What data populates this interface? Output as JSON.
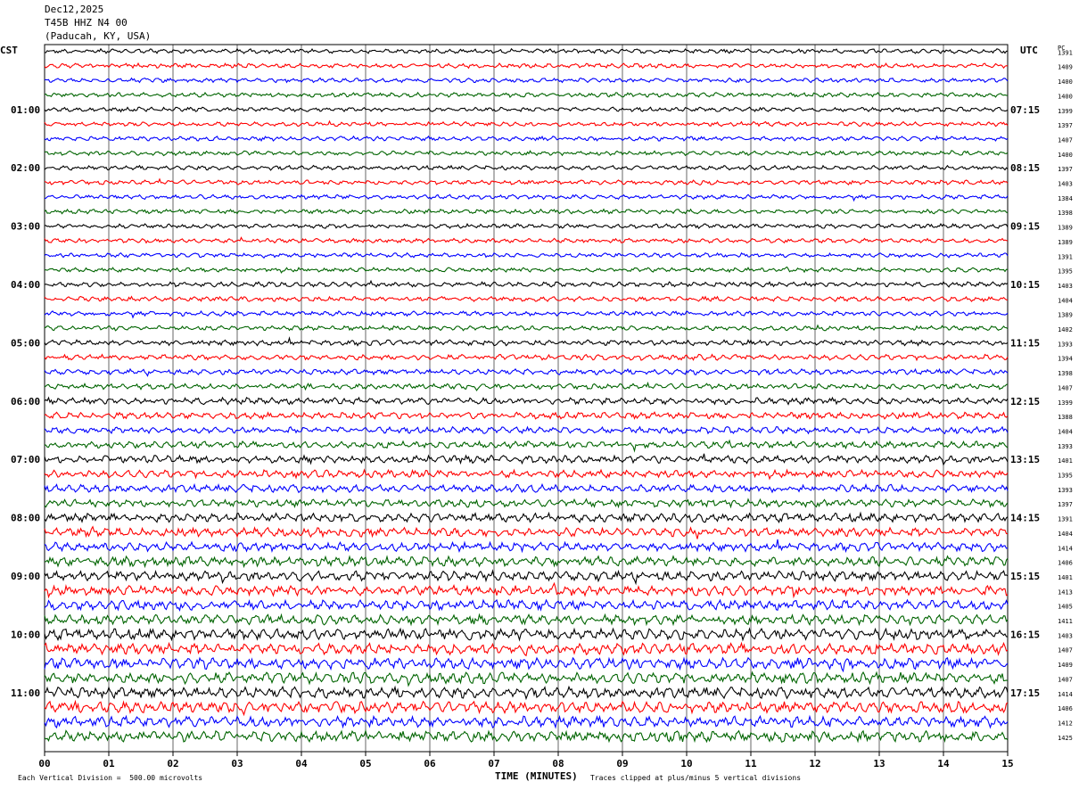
{
  "header": {
    "date": "Dec12,2025",
    "station": "T45B HHZ N4 00",
    "location": "(Paducah, KY, USA)"
  },
  "left_tz": "CST",
  "right_tz": "UTC",
  "pc_label": "PC",
  "footer": {
    "scale": "Each Vertical Division =  500.00 microvolts",
    "xlabel": "TIME (MINUTES)",
    "clip_note": "Traces clipped at plus/minus 5 vertical divisions"
  },
  "colors": {
    "cycle": [
      "#000000",
      "#ff0000",
      "#0000ff",
      "#006400"
    ],
    "grid": "#000000"
  },
  "chart_data": {
    "type": "line",
    "title": "",
    "xlabel": "TIME (MINUTES)",
    "ylabel": "",
    "x_ticks": [
      "00",
      "01",
      "02",
      "03",
      "04",
      "05",
      "06",
      "07",
      "08",
      "09",
      "10",
      "11",
      "12",
      "13",
      "14",
      "15"
    ],
    "xlim": [
      0,
      15
    ],
    "grid": "vertical",
    "left_hour_labels": [
      "01:00",
      "02:00",
      "03:00",
      "04:00",
      "05:00",
      "06:00",
      "07:00",
      "08:00",
      "09:00",
      "10:00",
      "11:00"
    ],
    "right_hour_labels": [
      "07:15",
      "08:15",
      "09:15",
      "10:15",
      "11:15",
      "12:15",
      "13:15",
      "14:15",
      "15:15",
      "16:15",
      "17:15"
    ],
    "trace_values": [
      1391,
      1409,
      1400,
      1400,
      1399,
      1397,
      1407,
      1400,
      1397,
      1403,
      1384,
      1398,
      1389,
      1389,
      1391,
      1395,
      1403,
      1404,
      1389,
      1402,
      1393,
      1394,
      1398,
      1407,
      1399,
      1388,
      1404,
      1393,
      1401,
      1395,
      1393,
      1397,
      1391,
      1404,
      1414,
      1406,
      1401,
      1413,
      1405,
      1411,
      1403,
      1407,
      1409,
      1407,
      1414,
      1406,
      1412,
      1425
    ],
    "trace_amplitude": [
      2,
      2,
      2,
      2,
      2,
      2,
      2,
      2,
      2,
      2,
      2,
      2,
      2,
      2,
      2,
      2,
      2.2,
      2.2,
      2.2,
      2.2,
      2.5,
      2.5,
      2.5,
      2.5,
      3,
      3,
      3,
      3,
      3.5,
      3.5,
      3.5,
      3.5,
      4,
      4,
      4,
      4.5,
      4.5,
      4.5,
      4.5,
      4.5,
      5,
      5,
      5,
      5,
      5,
      5,
      5,
      5
    ]
  }
}
